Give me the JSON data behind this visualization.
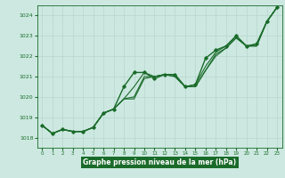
{
  "title": "Graphe pression niveau de la mer (hPa)",
  "bg_color": "#cce8e0",
  "grid_color": "#b8d8d0",
  "line_color": "#1a6b2a",
  "xlabel_bg": "#1a6b2a",
  "xlabel_fg": "#ffffff",
  "xlim": [
    -0.5,
    23.5
  ],
  "ylim": [
    1017.5,
    1024.5
  ],
  "yticks": [
    1018,
    1019,
    1020,
    1021,
    1022,
    1023,
    1024
  ],
  "xticks": [
    0,
    1,
    2,
    3,
    4,
    5,
    6,
    7,
    8,
    9,
    10,
    11,
    12,
    13,
    14,
    15,
    16,
    17,
    18,
    19,
    20,
    21,
    22,
    23
  ],
  "series": [
    {
      "y": [
        1018.6,
        1018.2,
        1018.4,
        1018.3,
        1018.3,
        1018.5,
        1019.2,
        1019.4,
        1020.5,
        1021.2,
        1021.2,
        1020.9,
        1021.1,
        1021.1,
        1020.5,
        1020.6,
        1021.9,
        1022.3,
        1022.5,
        1023.0,
        1022.5,
        1022.6,
        1023.7,
        1024.4
      ],
      "marker": true,
      "lw": 1.0
    },
    {
      "y": [
        1018.6,
        1018.2,
        1018.4,
        1018.3,
        1018.3,
        1018.5,
        1019.2,
        1019.4,
        1019.9,
        1020.5,
        1021.2,
        1021.0,
        1021.1,
        1021.1,
        1020.5,
        1020.6,
        1021.5,
        1022.2,
        1022.5,
        1023.0,
        1022.5,
        1022.6,
        1023.7,
        1024.4
      ],
      "marker": false,
      "lw": 0.8
    },
    {
      "y": [
        1018.6,
        1018.2,
        1018.4,
        1018.3,
        1018.3,
        1018.5,
        1019.2,
        1019.4,
        1019.9,
        1020.0,
        1021.0,
        1021.0,
        1021.1,
        1021.0,
        1020.5,
        1020.5,
        1021.3,
        1022.1,
        1022.4,
        1022.9,
        1022.5,
        1022.5,
        1023.7,
        1024.4
      ],
      "marker": false,
      "lw": 0.8
    },
    {
      "y": [
        1018.6,
        1018.2,
        1018.4,
        1018.3,
        1018.3,
        1018.5,
        1019.2,
        1019.4,
        1019.9,
        1019.9,
        1020.9,
        1021.0,
        1021.1,
        1021.0,
        1020.5,
        1020.5,
        1021.3,
        1022.0,
        1022.4,
        1022.9,
        1022.5,
        1022.5,
        1023.7,
        1024.4
      ],
      "marker": false,
      "lw": 0.8
    }
  ]
}
